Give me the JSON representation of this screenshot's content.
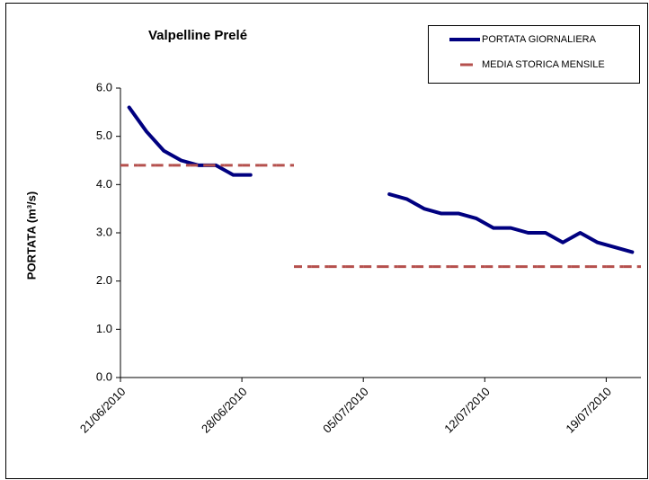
{
  "chart_data": {
    "type": "line",
    "title": "Valpelline Prelé",
    "ylabel": "PORTATA (m³/s)",
    "categories": [
      "21/06/2010",
      null,
      null,
      null,
      null,
      null,
      null,
      "28/06/2010",
      null,
      null,
      null,
      null,
      null,
      null,
      "05/07/2010",
      null,
      null,
      null,
      null,
      null,
      null,
      "12/07/2010",
      null,
      null,
      null,
      null,
      null,
      null,
      "19/07/2010",
      null
    ],
    "series": [
      {
        "name": "PORTATA GIORNALIERA",
        "color": "#000080",
        "style": "solid",
        "values": [
          5.6,
          5.1,
          4.7,
          4.5,
          4.4,
          4.4,
          4.2,
          4.2,
          null,
          null,
          null,
          null,
          null,
          null,
          null,
          3.8,
          3.7,
          3.5,
          3.4,
          3.4,
          3.3,
          3.1,
          3.1,
          3.0,
          3.0,
          2.8,
          3.0,
          2.8,
          2.7,
          2.6
        ]
      },
      {
        "name": "MEDIA STORICA MENSILE",
        "color": "#b5504d",
        "style": "dashed",
        "values": [
          4.4,
          4.4,
          4.4,
          4.4,
          4.4,
          4.4,
          4.4,
          4.4,
          4.4,
          4.4,
          2.3,
          2.3,
          2.3,
          2.3,
          2.3,
          2.3,
          2.3,
          2.3,
          2.3,
          2.3,
          2.3,
          2.3,
          2.3,
          2.3,
          2.3,
          2.3,
          2.3,
          2.3,
          2.3,
          2.3
        ]
      }
    ],
    "ylim": [
      0,
      6
    ],
    "yticks": [
      {
        "value": 0,
        "label": "0.0"
      },
      {
        "value": 1,
        "label": "1.0"
      },
      {
        "value": 2,
        "label": "2.0"
      },
      {
        "value": 3,
        "label": "3.0"
      },
      {
        "value": 4,
        "label": "4.0"
      },
      {
        "value": 5,
        "label": "5.0"
      },
      {
        "value": 6,
        "label": "6.0"
      }
    ],
    "legend": "top-right"
  }
}
